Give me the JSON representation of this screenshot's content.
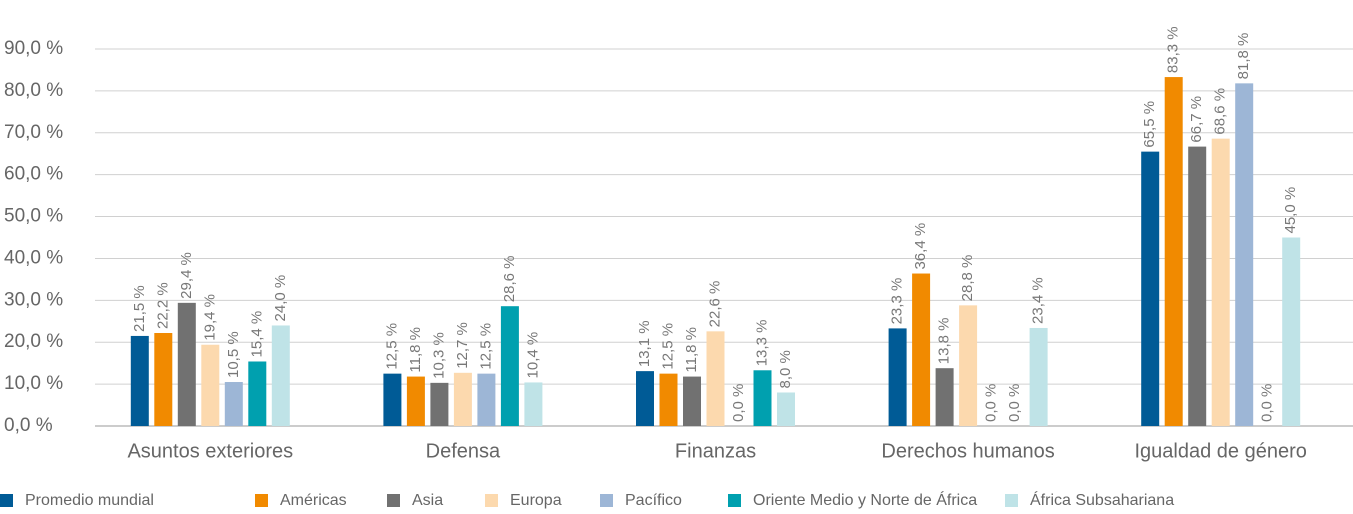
{
  "chart_data": {
    "type": "bar",
    "categories": [
      "Asuntos exteriores",
      "Defensa",
      "Finanzas",
      "Derechos humanos",
      "Igualdad de género"
    ],
    "series": [
      {
        "name": "Promedio mundial",
        "color": "#005b96",
        "values": [
          21.5,
          12.5,
          13.1,
          23.3,
          65.5
        ],
        "value_labels": [
          "21,5 %",
          "12,5 %",
          "13,1 %",
          "23,3 %",
          "65,5 %"
        ]
      },
      {
        "name": "Américas",
        "color": "#f18a00",
        "values": [
          22.2,
          11.8,
          12.5,
          36.4,
          83.3
        ],
        "value_labels": [
          "22,2 %",
          "11,8 %",
          "12,5 %",
          "36,4 %",
          "83,3 %"
        ]
      },
      {
        "name": "Asia",
        "color": "#717171",
        "values": [
          29.4,
          10.3,
          11.8,
          13.8,
          66.7
        ],
        "value_labels": [
          "29,4 %",
          "10,3 %",
          "11,8 %",
          "13,8 %",
          "66,7 %"
        ]
      },
      {
        "name": "Europa",
        "color": "#fcd9ae",
        "values": [
          19.4,
          12.7,
          22.6,
          28.8,
          68.6
        ],
        "value_labels": [
          "19,4 %",
          "12,7 %",
          "22,6 %",
          "28,8 %",
          "68,6 %"
        ]
      },
      {
        "name": "Pacífico",
        "color": "#9db6d6",
        "values": [
          10.5,
          12.5,
          0.0,
          0.0,
          81.8
        ],
        "value_labels": [
          "10,5 %",
          "12,5 %",
          "0,0 %",
          "0,0 %",
          "81,8 %"
        ]
      },
      {
        "name": "Oriente Medio y Norte de África",
        "color": "#00a0af",
        "values": [
          15.4,
          28.6,
          13.3,
          0.0,
          0.0
        ],
        "value_labels": [
          "15,4 %",
          "28,6 %",
          "13,3 %",
          "0,0 %",
          "0,0 %"
        ]
      },
      {
        "name": "África Subsahariana",
        "color": "#bfe3e7",
        "values": [
          24.0,
          10.4,
          8.0,
          23.4,
          45.0
        ],
        "value_labels": [
          "24,0 %",
          "10,4 %",
          "8,0 %",
          "23,4 %",
          "45,0 %"
        ]
      }
    ],
    "ylim": [
      0,
      90
    ],
    "yticks": [
      {
        "value": 0,
        "label": "0,0 %"
      },
      {
        "value": 10,
        "label": "10,0 %"
      },
      {
        "value": 20,
        "label": "20,0 %"
      },
      {
        "value": 30,
        "label": "30,0 %"
      },
      {
        "value": 40,
        "label": "40,0 %"
      },
      {
        "value": 50,
        "label": "50,0 %"
      },
      {
        "value": 60,
        "label": "60,0 %"
      },
      {
        "value": 70,
        "label": "70,0 %"
      },
      {
        "value": 80,
        "label": "80,0 %"
      },
      {
        "value": 90,
        "label": "90,0 %"
      }
    ],
    "grid": true,
    "legend": "bottom"
  }
}
